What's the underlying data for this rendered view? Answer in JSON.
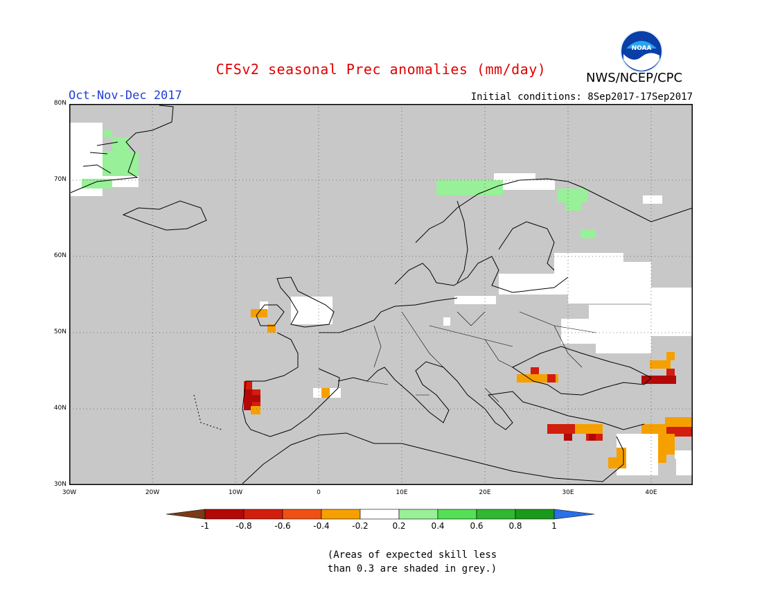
{
  "header": {
    "title": "CFSv2 seasonal Prec anomalies (mm/day)",
    "agency": "NWS/NCEP/CPC",
    "logo_text": "NOAA",
    "period": "Oct-Nov-Dec 2017",
    "initial_conditions": "Initial conditions: 8Sep2017-17Sep2017"
  },
  "map": {
    "lon_range": [
      -30,
      45
    ],
    "lat_range": [
      30,
      80
    ],
    "lat_labels": [
      "80N",
      "70N",
      "60N",
      "50N",
      "40N",
      "30N"
    ],
    "lon_labels": [
      "30W",
      "20W",
      "10W",
      "0",
      "10E",
      "20E",
      "30E",
      "40E"
    ],
    "grid": "dotted",
    "colors": {
      "no_skill": "#c8c8c8",
      "white": "#ffffff",
      "lightgreen": "#98f098",
      "orange": "#f6a000",
      "red_orange": "#e83c10",
      "dark_red": "#b40808"
    }
  },
  "colorbar": {
    "labels": [
      "-1",
      "-0.8",
      "-0.6",
      "-0.4",
      "-0.2",
      "0.2",
      "0.4",
      "0.6",
      "0.8",
      "1"
    ],
    "colors": [
      "#7a3a16",
      "#b40808",
      "#d21e0c",
      "#f05014",
      "#f6a000",
      "#ffffff",
      "#98f098",
      "#54e054",
      "#30b830",
      "#1a9a1a",
      "#2a70e8"
    ]
  },
  "note": {
    "line1": "(Areas of expected skill less",
    "line2": "than 0.3 are shaded in grey.)"
  }
}
